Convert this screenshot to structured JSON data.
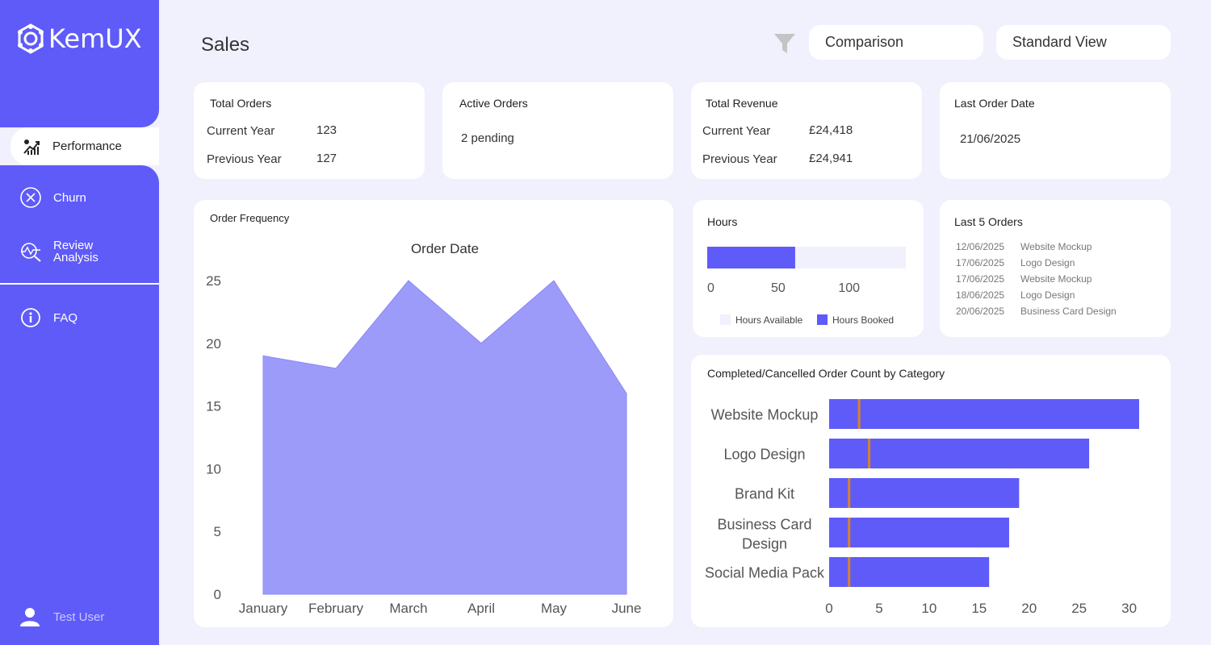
{
  "brand": {
    "name": "KemUX"
  },
  "sidebar": {
    "items": [
      {
        "label": "Performance",
        "icon": "performance-chart-icon",
        "active": true
      },
      {
        "label": "Churn",
        "icon": "close-circle-icon"
      },
      {
        "label": "Review Analysis",
        "icon": "review-analysis-icon"
      },
      {
        "label": "FAQ",
        "icon": "info-icon"
      }
    ],
    "user": "Test User"
  },
  "header": {
    "title": "Sales",
    "filter_icon": "filter-icon",
    "comparison_label": "Comparison",
    "view_label": "Standard View"
  },
  "kpis": {
    "total_orders": {
      "title": "Total Orders",
      "current_label": "Current Year",
      "current_value": "123",
      "previous_label": "Previous Year",
      "previous_value": "127"
    },
    "active_orders": {
      "title": "Active Orders",
      "value": "2 pending"
    },
    "total_revenue": {
      "title": "Total Revenue",
      "current_label": "Current Year",
      "current_value": "£24,418",
      "previous_label": "Previous Year",
      "previous_value": "£24,941"
    },
    "last_order_date": {
      "title": "Last Order Date",
      "value": "21/06/2025"
    }
  },
  "order_frequency": {
    "title": "Order Frequency",
    "chart_data": {
      "type": "area",
      "title": "Order Date",
      "categories": [
        "January",
        "February",
        "March",
        "April",
        "May",
        "June"
      ],
      "values": [
        19,
        18,
        25,
        20,
        25,
        16
      ],
      "ylim": [
        0,
        25
      ],
      "yticks": [
        0,
        5,
        10,
        15,
        20,
        25
      ],
      "color": "#9d9bfa"
    }
  },
  "hours": {
    "title": "Hours",
    "chart_data": {
      "type": "bar",
      "orientation": "horizontal",
      "series": [
        {
          "name": "Hours Available",
          "value": 140,
          "color": "#f1f0fd"
        },
        {
          "name": "Hours Booked",
          "value": 62,
          "color": "#5f5bf9"
        }
      ],
      "xticks": [
        0,
        50,
        100
      ],
      "xlim": [
        0,
        140
      ]
    }
  },
  "last_orders": {
    "title": "Last 5 Orders",
    "rows": [
      {
        "date": "12/06/2025",
        "item": "Website Mockup"
      },
      {
        "date": "17/06/2025",
        "item": "Logo Design"
      },
      {
        "date": "17/06/2025",
        "item": "Website Mockup"
      },
      {
        "date": "18/06/2025",
        "item": "Logo Design"
      },
      {
        "date": "20/06/2025",
        "item": "Business Card Design"
      }
    ]
  },
  "category_counts": {
    "title": "Completed/Cancelled Order Count by Category",
    "chart_data": {
      "type": "bar",
      "orientation": "horizontal",
      "categories": [
        "Website Mockup",
        "Logo Design",
        "Brand Kit",
        "Business Card Design",
        "Social Media Pack"
      ],
      "series": [
        {
          "values": [
            31,
            26,
            19,
            18,
            16
          ],
          "color": "#5f5bf9"
        },
        {
          "values": [
            3,
            4,
            2,
            2,
            2
          ],
          "color": "#d9822b",
          "style": "marker"
        }
      ],
      "xlim": [
        0,
        31
      ],
      "xticks": [
        0,
        5,
        10,
        15,
        20,
        25,
        30
      ]
    }
  }
}
